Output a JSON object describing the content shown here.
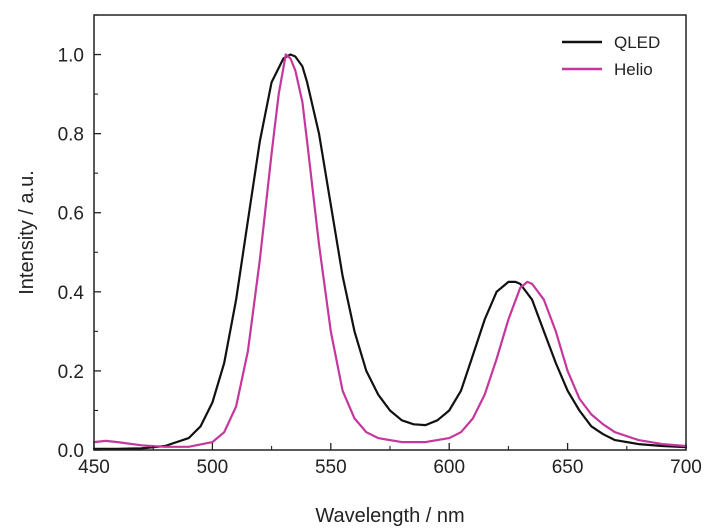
{
  "chart_data": {
    "type": "line",
    "xlabel": "Wavelength / nm",
    "ylabel": "Intensity / a.u.",
    "xlim": [
      450,
      700
    ],
    "ylim": [
      0.0,
      1.1
    ],
    "x_ticks": [
      450,
      500,
      550,
      600,
      650,
      700
    ],
    "x_tick_labels": [
      "450",
      "500",
      "550",
      "600",
      "650",
      "700"
    ],
    "y_ticks": [
      0.0,
      0.2,
      0.4,
      0.6,
      0.8,
      1.0
    ],
    "y_tick_labels": [
      "0.0",
      "0.2",
      "0.4",
      "0.6",
      "0.8",
      "1.0"
    ],
    "grid": false,
    "legend_position": "top-right",
    "series": [
      {
        "name": "QLED",
        "color": "#111111",
        "x": [
          450,
          460,
          470,
          480,
          490,
          495,
          500,
          505,
          510,
          515,
          520,
          525,
          530,
          533,
          535,
          538,
          540,
          545,
          550,
          555,
          560,
          565,
          570,
          575,
          580,
          585,
          590,
          595,
          600,
          605,
          610,
          615,
          620,
          625,
          628,
          630,
          635,
          640,
          645,
          650,
          655,
          660,
          665,
          670,
          680,
          690,
          700
        ],
        "y": [
          0.003,
          0.003,
          0.004,
          0.01,
          0.03,
          0.06,
          0.12,
          0.22,
          0.38,
          0.58,
          0.78,
          0.93,
          0.99,
          1.0,
          0.995,
          0.97,
          0.93,
          0.8,
          0.62,
          0.44,
          0.3,
          0.2,
          0.14,
          0.1,
          0.075,
          0.065,
          0.063,
          0.075,
          0.1,
          0.15,
          0.24,
          0.33,
          0.4,
          0.425,
          0.425,
          0.42,
          0.38,
          0.3,
          0.22,
          0.15,
          0.1,
          0.06,
          0.04,
          0.025,
          0.015,
          0.01,
          0.007
        ]
      },
      {
        "name": "Helio",
        "color": "#c4379c",
        "x": [
          450,
          455,
          460,
          470,
          480,
          490,
          500,
          505,
          510,
          515,
          520,
          525,
          528,
          531,
          533,
          535,
          538,
          540,
          545,
          550,
          555,
          560,
          565,
          570,
          580,
          590,
          600,
          605,
          610,
          615,
          620,
          625,
          630,
          633,
          635,
          640,
          645,
          650,
          655,
          660,
          665,
          670,
          680,
          690,
          700
        ],
        "y": [
          0.02,
          0.023,
          0.02,
          0.012,
          0.008,
          0.008,
          0.02,
          0.045,
          0.11,
          0.25,
          0.48,
          0.75,
          0.9,
          1.0,
          0.99,
          0.96,
          0.88,
          0.78,
          0.52,
          0.3,
          0.15,
          0.08,
          0.045,
          0.03,
          0.02,
          0.02,
          0.03,
          0.045,
          0.08,
          0.14,
          0.23,
          0.33,
          0.41,
          0.425,
          0.42,
          0.38,
          0.3,
          0.2,
          0.13,
          0.09,
          0.065,
          0.045,
          0.025,
          0.015,
          0.01
        ]
      }
    ]
  }
}
